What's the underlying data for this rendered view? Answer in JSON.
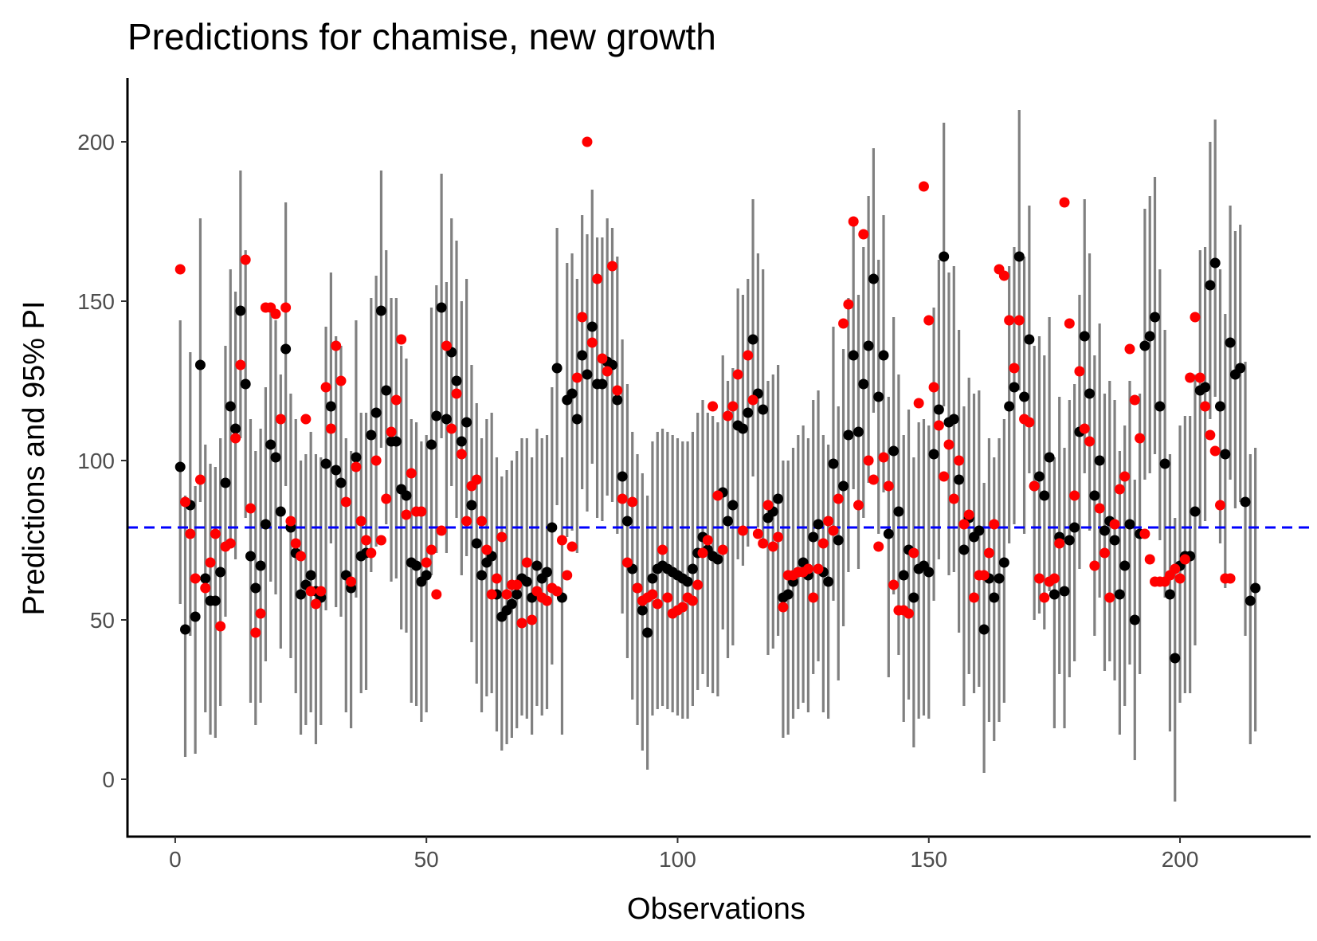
{
  "chart_data": {
    "type": "scatter",
    "title": "Predictions for chamise, new growth",
    "xlabel": "Observations",
    "ylabel": "Predictions and 95% PI",
    "xlim": [
      -9.5,
      226
    ],
    "ylim": [
      -18,
      220
    ],
    "x_ticks": [
      0,
      50,
      100,
      150,
      200
    ],
    "y_ticks": [
      0,
      50,
      100,
      150,
      200
    ],
    "grid": false,
    "legend": "none",
    "reference_line": {
      "y": 79,
      "style": "dashed",
      "color": "#0000ff"
    },
    "colors": {
      "interval": "#808080",
      "prediction": "#000000",
      "observed": "#ff0000",
      "reference": "#0000ff"
    },
    "predicted": [
      98,
      47,
      86,
      51,
      130,
      63,
      56,
      56,
      65,
      93,
      117,
      110,
      147,
      124,
      70,
      60,
      67,
      80,
      105,
      101,
      84,
      135,
      79,
      71,
      58,
      61,
      64,
      59,
      57,
      99,
      117,
      97,
      93,
      64,
      60,
      101,
      70,
      71,
      108,
      115,
      147,
      122,
      106,
      106,
      91,
      89,
      68,
      67,
      62,
      64,
      105,
      114,
      148,
      113,
      134,
      125,
      106,
      112,
      86,
      74,
      64,
      68,
      70,
      58,
      51,
      53,
      55,
      58,
      63,
      62,
      57,
      67,
      63,
      65,
      79,
      129,
      57,
      119,
      121,
      113,
      133,
      127,
      142,
      124,
      124,
      131,
      130,
      119,
      95,
      81,
      66,
      60,
      53,
      46,
      63,
      66,
      67,
      66,
      65,
      64,
      63,
      62,
      66,
      71,
      76,
      72,
      70,
      69,
      90,
      81,
      86,
      111,
      110,
      115,
      138,
      121,
      116,
      82,
      84,
      88,
      57,
      58,
      62,
      65,
      68,
      64,
      76,
      80,
      65,
      62,
      99,
      75,
      92,
      108,
      133,
      109,
      124,
      136,
      157,
      120,
      133,
      77,
      103,
      84,
      64,
      72,
      57,
      66,
      67,
      65,
      102,
      116,
      164,
      112,
      113,
      94,
      72,
      82,
      76,
      78,
      47,
      63,
      57,
      63,
      68,
      117,
      123,
      164,
      120,
      138,
      92,
      95,
      89,
      101,
      58,
      76,
      59,
      75,
      79,
      109,
      139,
      121,
      89,
      100,
      78,
      81,
      75,
      58,
      67,
      80,
      50,
      77,
      136,
      139,
      145,
      117,
      99,
      58,
      38,
      67,
      70,
      70,
      84,
      122,
      123,
      155,
      162,
      117,
      102,
      137,
      127,
      129,
      87,
      56,
      60
    ],
    "observed": [
      160,
      87,
      77,
      63,
      94,
      60,
      68,
      77,
      48,
      73,
      74,
      107,
      130,
      163,
      85,
      46,
      52,
      148,
      148,
      146,
      113,
      148,
      81,
      74,
      70,
      113,
      59,
      55,
      59,
      123,
      110,
      136,
      125,
      87,
      62,
      98,
      81,
      75,
      71,
      100,
      75,
      88,
      109,
      119,
      138,
      83,
      96,
      84,
      84,
      68,
      72,
      58,
      78,
      136,
      110,
      121,
      102,
      81,
      92,
      94,
      81,
      72,
      58,
      63,
      76,
      58,
      61,
      61,
      49,
      68,
      50,
      59,
      57,
      56,
      60,
      59,
      75,
      64,
      73,
      126,
      145,
      200,
      137,
      157,
      132,
      128,
      161,
      122,
      88,
      68,
      87,
      60,
      56,
      57,
      58,
      55,
      72,
      57,
      52,
      53,
      54,
      57,
      56,
      61,
      71,
      75,
      117,
      89,
      72,
      114,
      117,
      127,
      78,
      133,
      119,
      77,
      74,
      86,
      73,
      76,
      54,
      64,
      64,
      65,
      65,
      66,
      57,
      66,
      74,
      81,
      78,
      88,
      143,
      149,
      175,
      86,
      171,
      100,
      94,
      73,
      101,
      92,
      61,
      53,
      53,
      52,
      71,
      118,
      186,
      144,
      123,
      111,
      95,
      105,
      88,
      100,
      80,
      83,
      57,
      64,
      64,
      71,
      80,
      160,
      158,
      144,
      129,
      144,
      113,
      112,
      92,
      63,
      57,
      62,
      63,
      74,
      181,
      143,
      89,
      128,
      110,
      106,
      67,
      85,
      71,
      57,
      80,
      91,
      95,
      135,
      119,
      107,
      77,
      69,
      62,
      62,
      62,
      64,
      66,
      63,
      69,
      126,
      145,
      126,
      117,
      108,
      103,
      86,
      63,
      63
    ],
    "interval_lower": [
      55,
      7,
      45,
      8,
      87,
      21,
      14,
      13,
      23,
      51,
      75,
      69,
      107,
      82,
      24,
      17,
      24,
      37,
      62,
      58,
      41,
      92,
      38,
      27,
      14,
      17,
      21,
      11,
      17,
      53,
      74,
      54,
      51,
      21,
      16,
      57,
      27,
      28,
      65,
      73,
      104,
      80,
      62,
      63,
      47,
      46,
      24,
      23,
      18,
      21,
      64,
      71,
      107,
      71,
      92,
      82,
      64,
      70,
      43,
      30,
      21,
      26,
      27,
      15,
      9,
      11,
      13,
      16,
      20,
      19,
      14,
      23,
      20,
      22,
      36,
      86,
      14,
      76,
      78,
      71,
      91,
      84,
      99,
      82,
      81,
      89,
      87,
      77,
      52,
      38,
      25,
      17,
      9,
      3,
      20,
      22,
      23,
      22,
      21,
      20,
      19,
      19,
      23,
      28,
      33,
      29,
      27,
      26,
      47,
      38,
      42,
      69,
      67,
      73,
      95,
      79,
      73,
      39,
      41,
      45,
      13,
      14,
      19,
      22,
      24,
      21,
      33,
      37,
      21,
      19,
      56,
      31,
      48,
      65,
      91,
      66,
      82,
      93,
      115,
      77,
      90,
      32,
      58,
      39,
      18,
      25,
      10,
      19,
      20,
      19,
      56,
      69,
      117,
      64,
      65,
      46,
      23,
      33,
      27,
      29,
      2,
      18,
      12,
      18,
      24,
      74,
      80,
      122,
      77,
      96,
      50,
      52,
      47,
      59,
      16,
      33,
      16,
      32,
      37,
      66,
      96,
      78,
      45,
      57,
      34,
      37,
      31,
      14,
      23,
      36,
      6,
      33,
      94,
      96,
      102,
      75,
      57,
      15,
      -7,
      24,
      27,
      27,
      42,
      79,
      81,
      113,
      120,
      74,
      60,
      94,
      85,
      87,
      45,
      11,
      15
    ],
    "interval_upper": [
      144,
      89,
      134,
      92,
      176,
      105,
      99,
      98,
      107,
      136,
      160,
      153,
      191,
      166,
      113,
      103,
      110,
      123,
      148,
      144,
      127,
      181,
      121,
      113,
      100,
      102,
      109,
      102,
      101,
      142,
      159,
      139,
      136,
      107,
      103,
      144,
      115,
      115,
      151,
      158,
      191,
      166,
      151,
      151,
      136,
      132,
      113,
      112,
      106,
      108,
      148,
      155,
      190,
      156,
      176,
      169,
      150,
      157,
      130,
      118,
      107,
      113,
      115,
      101,
      95,
      97,
      100,
      103,
      107,
      107,
      101,
      110,
      107,
      108,
      123,
      173,
      101,
      162,
      165,
      157,
      177,
      171,
      185,
      170,
      170,
      176,
      173,
      164,
      138,
      124,
      109,
      102,
      96,
      89,
      106,
      109,
      110,
      109,
      108,
      107,
      106,
      106,
      109,
      115,
      119,
      115,
      114,
      112,
      133,
      125,
      129,
      154,
      152,
      157,
      182,
      165,
      160,
      125,
      127,
      130,
      100,
      100,
      104,
      108,
      111,
      107,
      119,
      122,
      108,
      105,
      142,
      117,
      135,
      151,
      176,
      152,
      167,
      183,
      198,
      163,
      177,
      120,
      145,
      127,
      108,
      116,
      101,
      112,
      113,
      111,
      148,
      163,
      206,
      159,
      161,
      141,
      117,
      126,
      121,
      122,
      93,
      107,
      101,
      107,
      113,
      161,
      167,
      210,
      164,
      180,
      136,
      139,
      133,
      145,
      101,
      120,
      104,
      119,
      124,
      152,
      182,
      165,
      133,
      143,
      121,
      125,
      119,
      103,
      111,
      125,
      94,
      121,
      179,
      183,
      189,
      160,
      141,
      102,
      82,
      111,
      114,
      114,
      127,
      166,
      167,
      200,
      207,
      160,
      146,
      180,
      172,
      174,
      131,
      102,
      104
    ]
  }
}
